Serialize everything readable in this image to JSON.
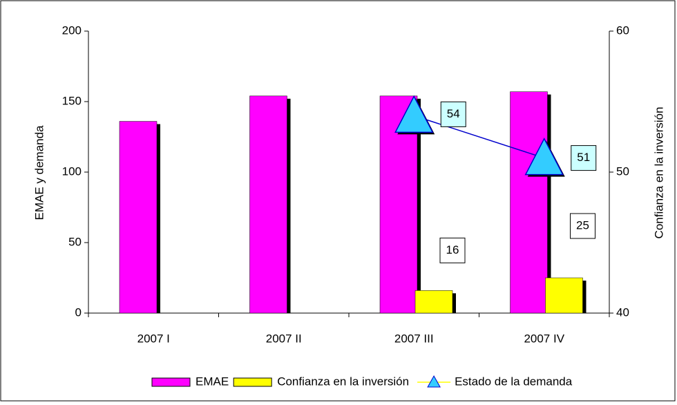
{
  "chart_data": {
    "type": "bar",
    "categories": [
      "2007 I",
      "2007 II",
      "2007 III",
      "2007 IV"
    ],
    "series": [
      {
        "name": "EMAE",
        "color": "#ff00ff",
        "values": [
          136,
          154,
          154,
          157
        ]
      },
      {
        "name": "Confianza en la inversión",
        "color": "#ffff00",
        "values": [
          null,
          null,
          16,
          25
        ]
      },
      {
        "name": "Estado de la demanda",
        "color": "#33ccff",
        "line_color": "#0000cc",
        "type": "line",
        "axis": "y2",
        "values": [
          null,
          null,
          54,
          51
        ]
      }
    ],
    "ylabel": "EMAE y demanda",
    "y2label": "Confianza en la inversión",
    "ylim": [
      0,
      200
    ],
    "yticks": [
      0,
      50,
      100,
      150,
      200
    ],
    "y2lim": [
      40,
      60
    ],
    "y2ticks": [
      40,
      50,
      60
    ],
    "legend": "bottom"
  }
}
